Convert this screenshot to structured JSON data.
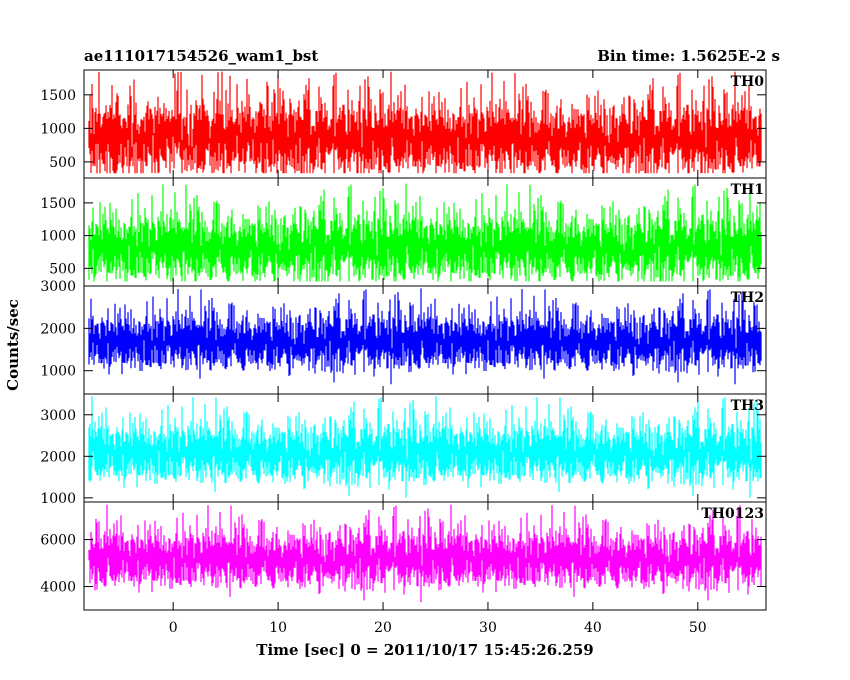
{
  "chart_data": {
    "type": "line",
    "title_left": "ae111017154526_wam1_bst",
    "title_right": "Bin time: 1.5625E-2 s",
    "xlabel": "Time [sec] 0 = 2011/10/17 15:45:26.259",
    "ylabel": "Counts/sec",
    "xlim": [
      -8.5,
      56.5
    ],
    "xticks": [
      0,
      10,
      20,
      30,
      40,
      50
    ],
    "data_x_range": [
      -8,
      56
    ],
    "bin_time": 0.015625,
    "grid": false,
    "panels": [
      {
        "name": "TH0",
        "color": "#ff0000",
        "ylim": [
          260,
          1870
        ],
        "yticks": [
          500,
          1000,
          1500
        ],
        "mean": 850,
        "min": 330,
        "max": 1850
      },
      {
        "name": "TH1",
        "color": "#00ff00",
        "ylim": [
          230,
          1880
        ],
        "yticks": [
          500,
          1000,
          1500
        ],
        "mean": 830,
        "min": 300,
        "max": 1800
      },
      {
        "name": "TH2",
        "color": "#0000ff",
        "ylim": [
          450,
          3000
        ],
        "yticks": [
          1000,
          2000,
          3000
        ],
        "mean": 1700,
        "min": 550,
        "max": 2950
      },
      {
        "name": "TH3",
        "color": "#00ffff",
        "ylim": [
          900,
          3500
        ],
        "yticks": [
          1000,
          2000,
          3000
        ],
        "mean": 2100,
        "min": 950,
        "max": 3450
      },
      {
        "name": "TH0123",
        "color": "#ff00ff",
        "ylim": [
          3000,
          7600
        ],
        "yticks": [
          4000,
          6000
        ],
        "mean": 5200,
        "min": 3100,
        "max": 7500
      }
    ]
  }
}
